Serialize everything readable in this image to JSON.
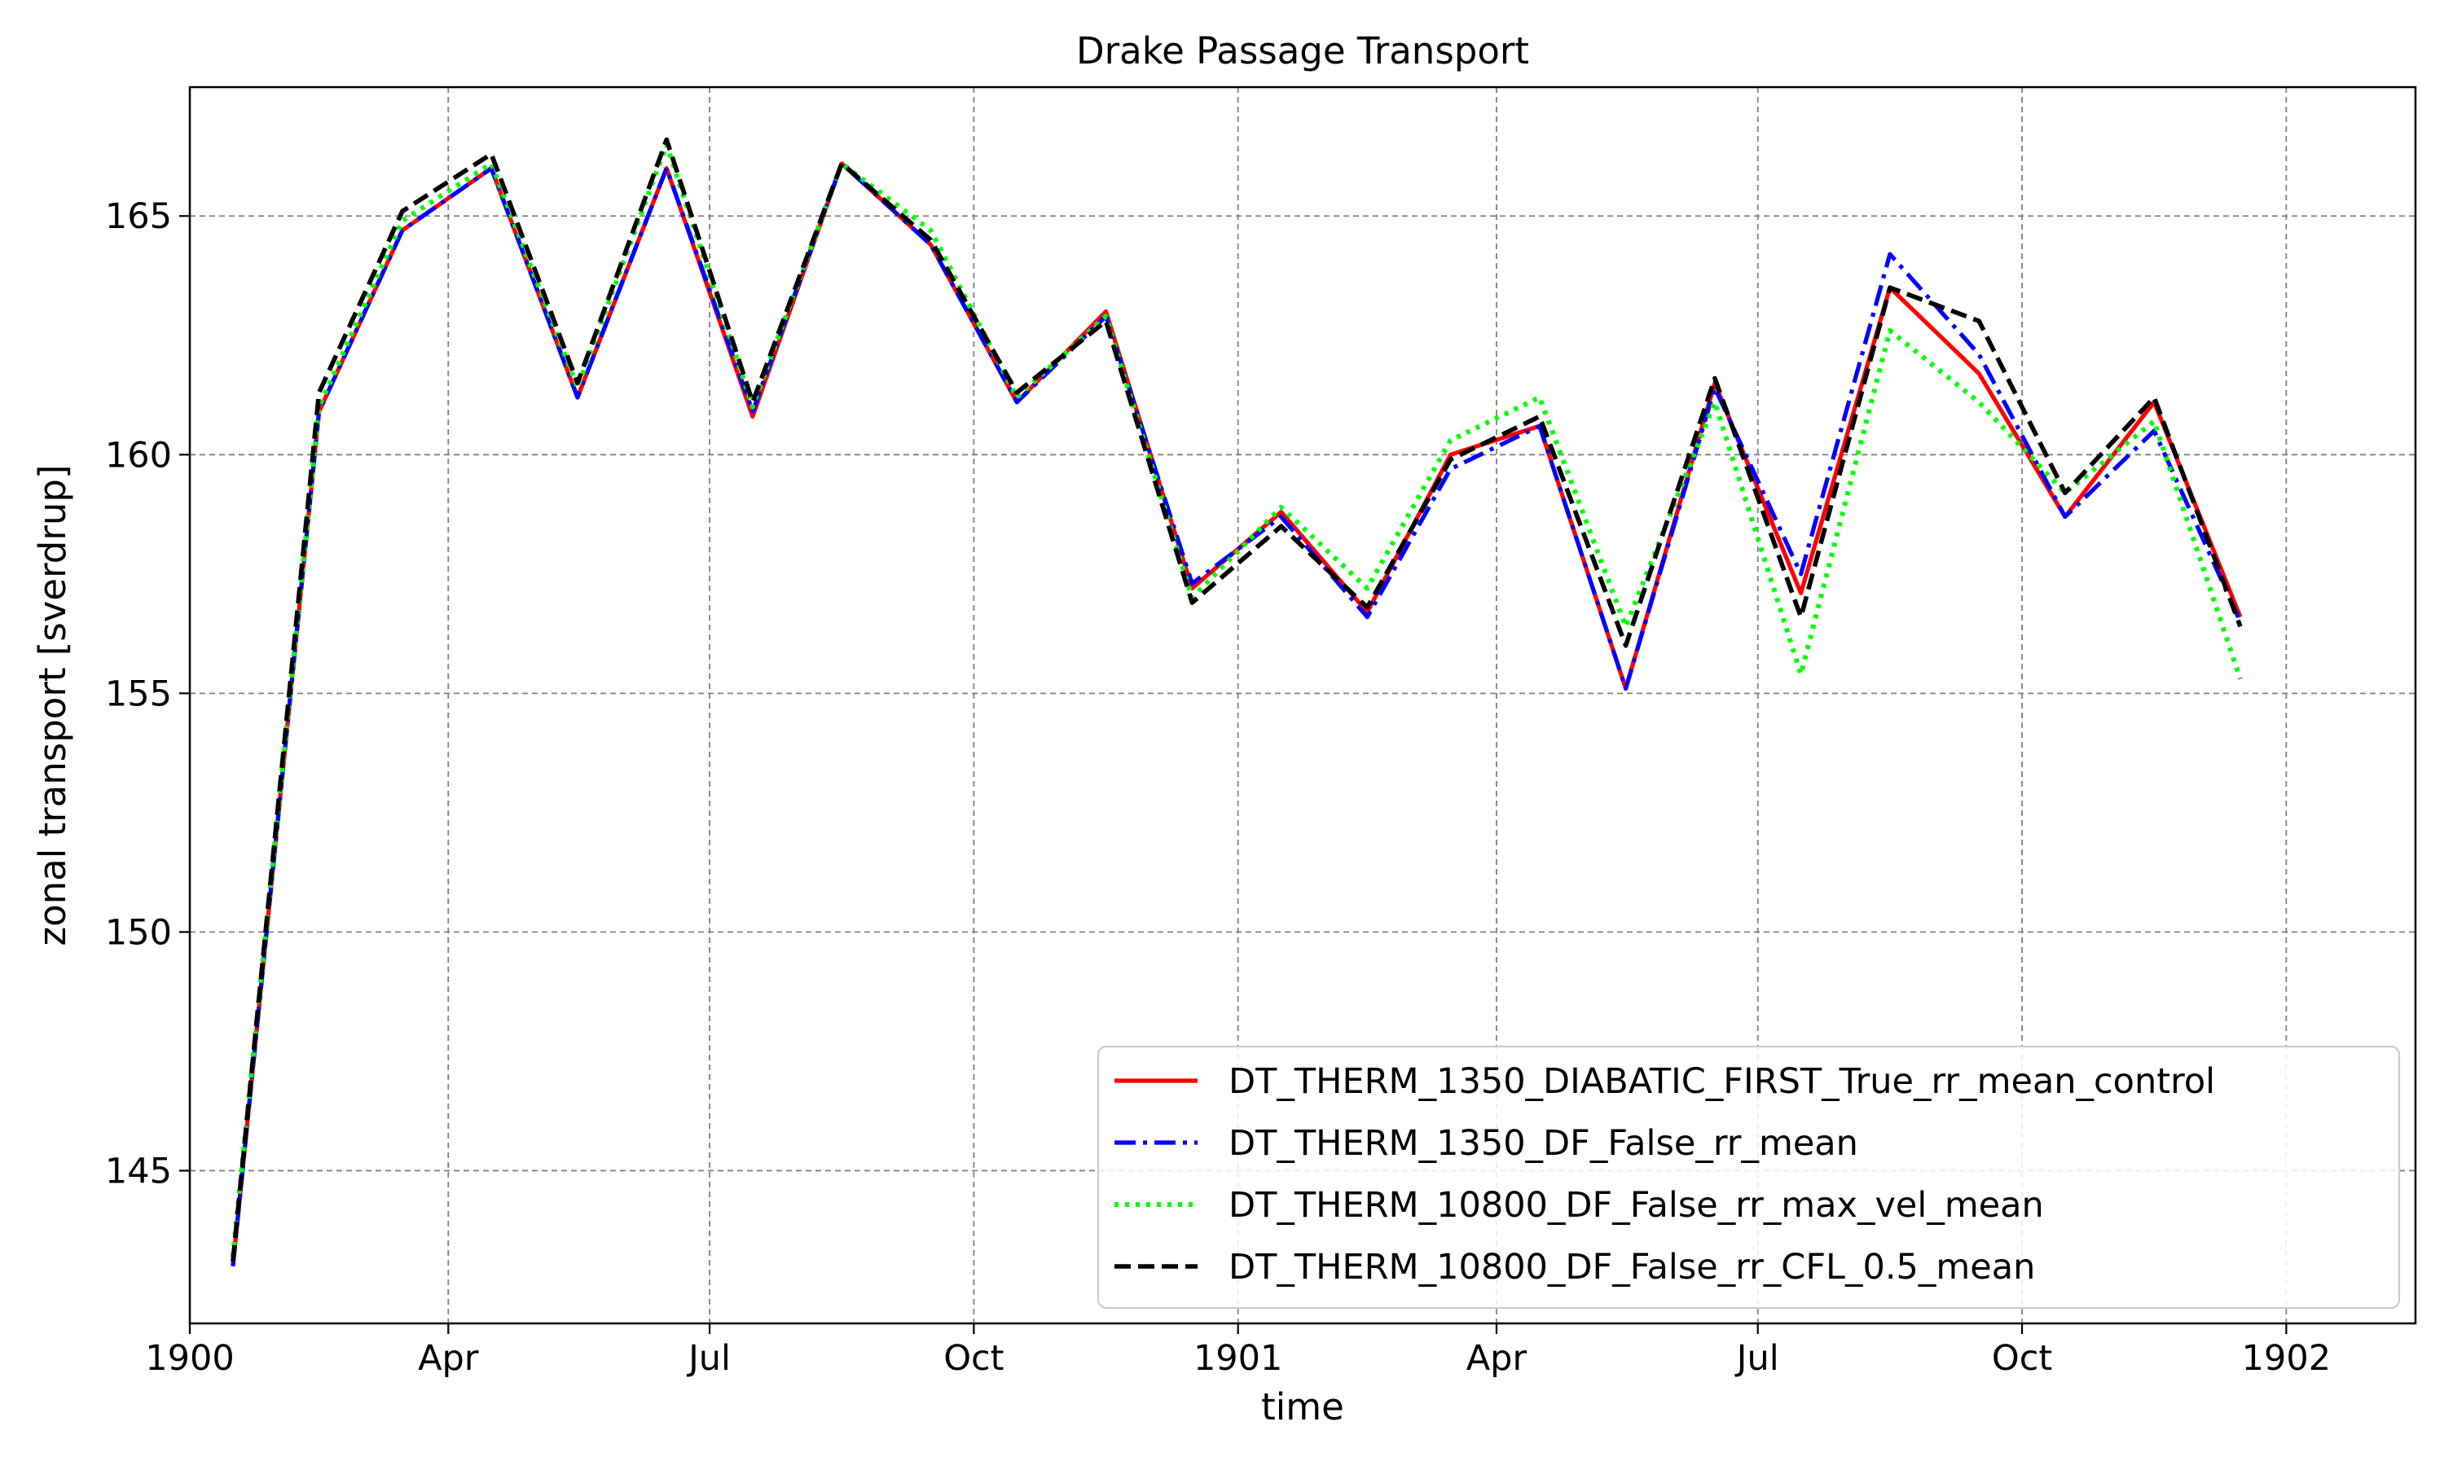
{
  "chart_data": {
    "type": "line",
    "title": "Drake Passage Transport",
    "xlabel": "time",
    "ylabel": "zonal transport [sverdrup]",
    "grid": true,
    "legend_position": "lower-right",
    "xlim": [
      "1900-01-01",
      "1902-02-15"
    ],
    "ylim": [
      141.8,
      167.7
    ],
    "x_ticks": [
      {
        "date": "1900-01-01",
        "label": "1900"
      },
      {
        "date": "1900-04-01",
        "label": "Apr"
      },
      {
        "date": "1900-07-01",
        "label": "Jul"
      },
      {
        "date": "1900-10-01",
        "label": "Oct"
      },
      {
        "date": "1901-01-01",
        "label": "1901"
      },
      {
        "date": "1901-04-01",
        "label": "Apr"
      },
      {
        "date": "1901-07-01",
        "label": "Jul"
      },
      {
        "date": "1901-10-01",
        "label": "Oct"
      },
      {
        "date": "1902-01-01",
        "label": "1902"
      }
    ],
    "y_ticks": [
      145,
      150,
      155,
      160,
      165
    ],
    "x": [
      "1900-01-16",
      "1900-02-15",
      "1900-03-16",
      "1900-04-16",
      "1900-05-16",
      "1900-06-16",
      "1900-07-16",
      "1900-08-16",
      "1900-09-16",
      "1900-10-16",
      "1900-11-16",
      "1900-12-16",
      "1901-01-16",
      "1901-02-15",
      "1901-03-16",
      "1901-04-16",
      "1901-05-16",
      "1901-06-16",
      "1901-07-16",
      "1901-08-16",
      "1901-09-16",
      "1901-10-16",
      "1901-11-16",
      "1901-12-16"
    ],
    "series": [
      {
        "name": "DT_THERM_1350_DIABATIC_FIRST_True_rr_mean_control",
        "color": "#ff0000",
        "style": "solid",
        "values": [
          143.0,
          160.9,
          164.7,
          166.0,
          161.2,
          166.0,
          160.8,
          166.1,
          164.4,
          161.1,
          163.0,
          157.2,
          158.8,
          156.7,
          160.0,
          160.6,
          155.1,
          161.5,
          157.1,
          163.5,
          161.7,
          158.7,
          161.1,
          156.6
        ]
      },
      {
        "name": "DT_THERM_1350_DF_False_rr_mean",
        "color": "#0000ff",
        "style": "dashdot",
        "values": [
          143.0,
          160.9,
          164.7,
          166.0,
          161.2,
          166.0,
          160.9,
          166.1,
          164.4,
          161.1,
          162.9,
          157.3,
          158.7,
          156.6,
          159.7,
          160.6,
          155.1,
          161.4,
          157.5,
          164.2,
          162.1,
          158.7,
          160.5,
          156.5
        ]
      },
      {
        "name": "DT_THERM_10800_DF_False_rr_max_vel_mean",
        "color": "#00ff00",
        "style": "dotted",
        "values": [
          143.2,
          161.0,
          164.9,
          166.1,
          161.4,
          166.5,
          161.0,
          166.1,
          164.7,
          161.2,
          162.9,
          157.0,
          158.9,
          157.2,
          160.3,
          161.2,
          156.4,
          161.1,
          155.4,
          162.6,
          161.1,
          159.2,
          160.7,
          155.3
        ]
      },
      {
        "name": "DT_THERM_10800_DF_False_rr_CFL_0.5_mean",
        "color": "#000000",
        "style": "dashed",
        "values": [
          143.1,
          161.3,
          165.1,
          166.3,
          161.5,
          166.6,
          161.1,
          166.1,
          164.5,
          161.3,
          162.8,
          156.9,
          158.5,
          156.8,
          159.9,
          160.8,
          156.0,
          161.6,
          156.6,
          163.5,
          162.8,
          159.2,
          161.2,
          156.4
        ]
      }
    ]
  }
}
